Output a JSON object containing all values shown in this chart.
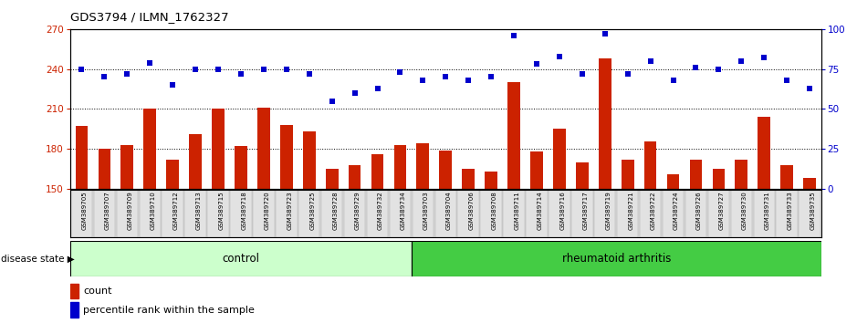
{
  "title": "GDS3794 / ILMN_1762327",
  "categories": [
    "GSM389705",
    "GSM389707",
    "GSM389709",
    "GSM389710",
    "GSM389712",
    "GSM389713",
    "GSM389715",
    "GSM389718",
    "GSM389720",
    "GSM389723",
    "GSM389725",
    "GSM389728",
    "GSM389729",
    "GSM389732",
    "GSM389734",
    "GSM389703",
    "GSM389704",
    "GSM389706",
    "GSM389708",
    "GSM389711",
    "GSM389714",
    "GSM389716",
    "GSM389717",
    "GSM389719",
    "GSM389721",
    "GSM389722",
    "GSM389724",
    "GSM389726",
    "GSM389727",
    "GSM389730",
    "GSM389731",
    "GSM389733",
    "GSM389735"
  ],
  "bar_values": [
    197,
    180,
    183,
    210,
    172,
    191,
    210,
    182,
    211,
    198,
    193,
    165,
    168,
    176,
    183,
    184,
    179,
    165,
    163,
    230,
    178,
    195,
    170,
    248,
    172,
    186,
    161,
    172,
    165,
    172,
    204,
    168,
    158
  ],
  "dot_values": [
    75,
    70,
    72,
    79,
    65,
    75,
    75,
    72,
    75,
    75,
    72,
    55,
    60,
    63,
    73,
    68,
    70,
    68,
    70,
    96,
    78,
    83,
    72,
    97,
    72,
    80,
    68,
    76,
    75,
    80,
    82,
    68,
    63
  ],
  "n_control": 15,
  "ylim_left": [
    150,
    270
  ],
  "ylim_right": [
    0,
    100
  ],
  "yticks_left": [
    150,
    180,
    210,
    240,
    270
  ],
  "yticks_right": [
    0,
    25,
    50,
    75,
    100
  ],
  "bar_color": "#cc2200",
  "dot_color": "#0000cc",
  "bar_bottom": 150,
  "control_color": "#ccffcc",
  "ra_color": "#44cc44",
  "tick_bg_color": "#d8d8d8"
}
